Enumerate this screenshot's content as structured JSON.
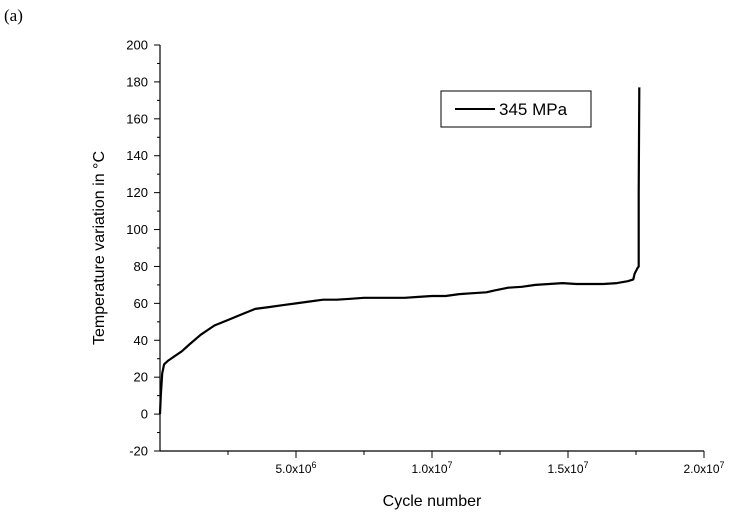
{
  "panel_label": "(a)",
  "chart_data": {
    "type": "line",
    "xlabel": "Cycle number",
    "ylabel": "Temperature variation in °C",
    "xlim": [
      0,
      20000000
    ],
    "ylim": [
      -20,
      200
    ],
    "x_ticks": [
      {
        "value": 5000000,
        "mantissa": "5.0x10",
        "exp": "6"
      },
      {
        "value": 10000000,
        "mantissa": "1.0x10",
        "exp": "7"
      },
      {
        "value": 15000000,
        "mantissa": "1.5x10",
        "exp": "7"
      },
      {
        "value": 20000000,
        "mantissa": "2.0x10",
        "exp": "7"
      }
    ],
    "y_ticks": [
      -20,
      0,
      20,
      40,
      60,
      80,
      100,
      120,
      140,
      160,
      180,
      200
    ],
    "legend_position": "top-right",
    "series": [
      {
        "name": "345 MPa",
        "color": "#000000",
        "points": [
          [
            0,
            0
          ],
          [
            30000,
            10
          ],
          [
            80000,
            22
          ],
          [
            150000,
            27
          ],
          [
            300000,
            29
          ],
          [
            500000,
            31
          ],
          [
            800000,
            34
          ],
          [
            1100000,
            38
          ],
          [
            1500000,
            43
          ],
          [
            2000000,
            48
          ],
          [
            2500000,
            51
          ],
          [
            3000000,
            54
          ],
          [
            3500000,
            57
          ],
          [
            4000000,
            58
          ],
          [
            4500000,
            59
          ],
          [
            5000000,
            60
          ],
          [
            5500000,
            61
          ],
          [
            6000000,
            62
          ],
          [
            6500000,
            62
          ],
          [
            7000000,
            62.5
          ],
          [
            7500000,
            63
          ],
          [
            8000000,
            63
          ],
          [
            8500000,
            63
          ],
          [
            9000000,
            63
          ],
          [
            9500000,
            63.5
          ],
          [
            10000000,
            64
          ],
          [
            10500000,
            64
          ],
          [
            11000000,
            65
          ],
          [
            11500000,
            65.5
          ],
          [
            12000000,
            66
          ],
          [
            12300000,
            67
          ],
          [
            12800000,
            68.5
          ],
          [
            13300000,
            69
          ],
          [
            13800000,
            70
          ],
          [
            14300000,
            70.5
          ],
          [
            14800000,
            71
          ],
          [
            15300000,
            70.5
          ],
          [
            15800000,
            70.5
          ],
          [
            16300000,
            70.5
          ],
          [
            16800000,
            71
          ],
          [
            17200000,
            72
          ],
          [
            17400000,
            73
          ],
          [
            17450000,
            76
          ],
          [
            17550000,
            79
          ],
          [
            17600000,
            80
          ],
          [
            17600000,
            120
          ],
          [
            17620000,
            177
          ]
        ]
      }
    ]
  }
}
